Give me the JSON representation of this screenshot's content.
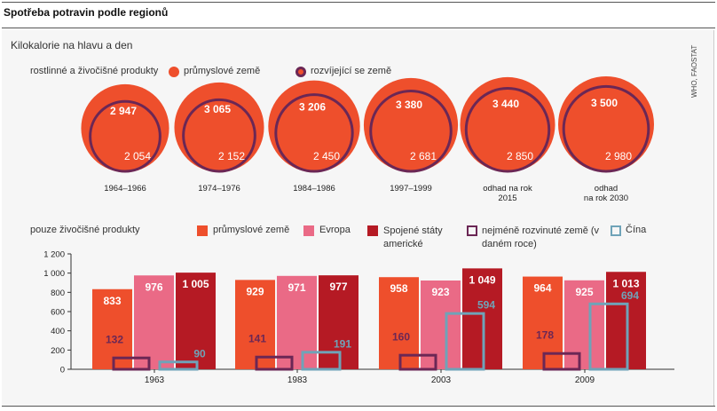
{
  "title": "Spotřeba potravin podle regionů",
  "subtitle": "Kilokalorie na hlavu a den",
  "source": "WHO, FAOSTAT",
  "colors": {
    "industrial": "#ee4f2c",
    "developing_ring": "#6b2755",
    "europe": "#ea6a86",
    "usa": "#b51a24",
    "least_developed": "#6b2755",
    "china": "#6fa3b8"
  },
  "top": {
    "label": "rostlinné a živočišné produkty",
    "legend_industrial": "průmyslové země",
    "legend_developing": "rozvíjející se země",
    "periods": [
      {
        "label": "1964–1966",
        "industrial": "2 947",
        "developing": "2 054"
      },
      {
        "label": "1974–1976",
        "industrial": "3 065",
        "developing": "2 152"
      },
      {
        "label": "1984–1986",
        "industrial": "3 206",
        "developing": "2 450"
      },
      {
        "label": "1997–1999",
        "industrial": "3 380",
        "developing": "2 681"
      },
      {
        "label": "odhad na rok 2015",
        "industrial": "3 440",
        "developing": "2 850"
      },
      {
        "label": "odhad na rok 2030",
        "industrial": "3 500",
        "developing": "2 980"
      }
    ]
  },
  "bottom": {
    "label": "pouze živočišné produkty",
    "legend": {
      "industrial": "průmyslové země",
      "europe": "Evropa",
      "usa": "Spojené státy americké",
      "least_developed": "nejméně rozvinuté země (v daném roce)",
      "china": "Čína"
    }
  },
  "chart_data": [
    {
      "type": "bubble",
      "title": "rostlinné a živočišné produkty",
      "unit": "kcal per capita per day",
      "categories": [
        "1964–1966",
        "1974–1976",
        "1984–1986",
        "1997–1999",
        "odhad na rok 2015",
        "odhad na rok 2030"
      ],
      "series": [
        {
          "name": "průmyslové země",
          "values": [
            2947,
            3065,
            3206,
            3380,
            3440,
            3500
          ]
        },
        {
          "name": "rozvíjející se země",
          "values": [
            2054,
            2152,
            2450,
            2681,
            2850,
            2980
          ]
        }
      ]
    },
    {
      "type": "bar",
      "title": "pouze živočišné produkty",
      "categories": [
        "1963",
        "1983",
        "2003",
        "2009"
      ],
      "ylim": [
        0,
        1200
      ],
      "yticks": [
        "0",
        "200",
        "400",
        "600",
        "800",
        "1 000",
        "1 200"
      ],
      "ytick_values": [
        0,
        200,
        400,
        600,
        800,
        1000,
        1200
      ],
      "grid": false,
      "series": [
        {
          "name": "průmyslové země",
          "values": [
            833,
            929,
            958,
            964
          ],
          "labels": [
            "833",
            "929",
            "958",
            "964"
          ]
        },
        {
          "name": "Evropa",
          "values": [
            976,
            971,
            923,
            925
          ],
          "labels": [
            "976",
            "971",
            "923",
            "925"
          ]
        },
        {
          "name": "Spojené státy americké",
          "values": [
            1005,
            977,
            1049,
            1013
          ],
          "labels": [
            "1 005",
            "977",
            "1 049",
            "1 013"
          ]
        },
        {
          "name": "nejméně rozvinuté země (v daném roce)",
          "values": [
            132,
            141,
            160,
            178
          ],
          "labels": [
            "132",
            "141",
            "160",
            "178"
          ]
        },
        {
          "name": "Čína",
          "values": [
            90,
            191,
            594,
            694
          ],
          "labels": [
            "90",
            "191",
            "594",
            "694"
          ]
        }
      ]
    }
  ]
}
